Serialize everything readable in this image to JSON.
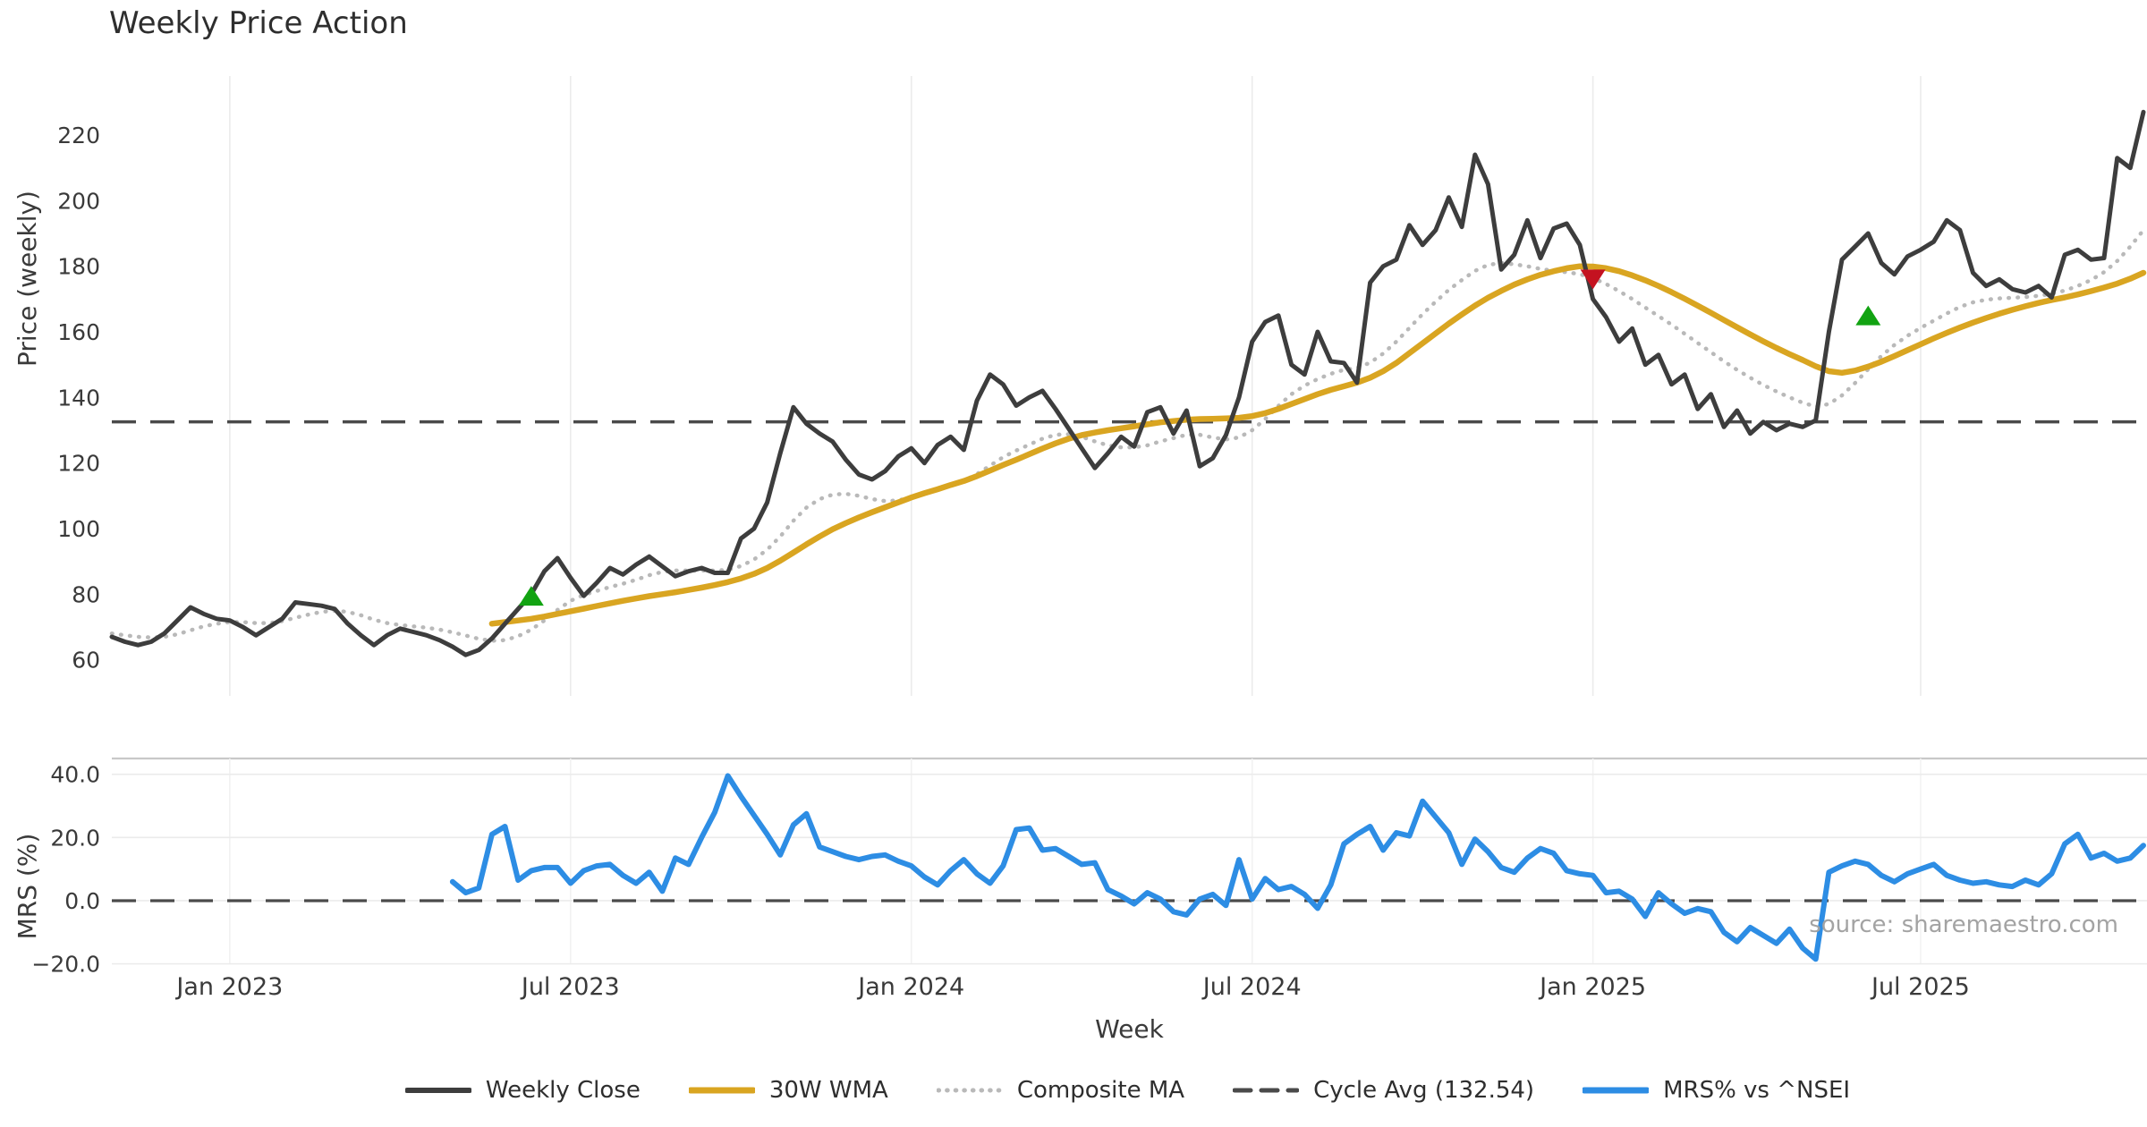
{
  "title": "Weekly Price Action",
  "source_text": "source: sharemaestro.com",
  "colors": {
    "close": "#3d3d3d",
    "wma": "#d9a521",
    "composite": "#b9b9b9",
    "cycle": "#4a4a4a",
    "mrs": "#2d8de4",
    "marker_up": "#12a312",
    "marker_down": "#c41220",
    "grid": "#ebebeb",
    "grid_faint": "#f2f2f2",
    "panel_border": "#c8c8c8",
    "axis_text": "#3a3a3a",
    "source_text_color": "#a3a3a3"
  },
  "legend": {
    "items": [
      {
        "label": "Weekly Close",
        "style": "solid",
        "color": "#3d3d3d",
        "thickness": 6
      },
      {
        "label": "30W WMA",
        "style": "solid",
        "color": "#d9a521",
        "thickness": 7
      },
      {
        "label": "Composite MA",
        "style": "dotted",
        "color": "#b9b9b9",
        "thickness": 5
      },
      {
        "label": "Cycle Avg (132.54)",
        "style": "dashed",
        "color": "#4a4a4a",
        "thickness": 5
      },
      {
        "label": "MRS% vs ^NSEI",
        "style": "solid",
        "color": "#2d8de4",
        "thickness": 7
      }
    ]
  },
  "chart_data": [
    {
      "type": "line",
      "panel": "price",
      "title": "Weekly Price Action",
      "xlabel": "Week",
      "ylabel": "Price (weekly)",
      "n_weeks": 156,
      "x_start_date_approx": "2022-10-31",
      "x_tick_labels": [
        "Jan 2023",
        "Jul 2023",
        "Jan 2024",
        "Jul 2024",
        "Jan 2025",
        "Jul 2025"
      ],
      "x_tick_weeks": [
        9,
        35,
        61,
        87,
        113,
        138
      ],
      "ylim": [
        49,
        238
      ],
      "yticks": [
        60,
        80,
        100,
        120,
        140,
        160,
        180,
        200,
        220
      ],
      "grid": "vertical",
      "reference_line": {
        "name": "Cycle Avg (132.54)",
        "value": 132.54,
        "style": "dashed"
      },
      "series": [
        {
          "name": "Weekly Close",
          "style": "solid",
          "color_key": "close",
          "start_index": 0,
          "values": [
            67,
            65.5,
            64.5,
            65.5,
            68,
            72,
            76,
            74,
            72.5,
            72,
            70,
            67.5,
            70,
            72.5,
            77.5,
            77,
            76.5,
            75.5,
            71,
            67.5,
            64.5,
            67.5,
            69.5,
            68.5,
            67.5,
            66,
            64,
            61.5,
            63,
            66.5,
            71,
            75.5,
            80,
            87,
            91,
            85,
            79.5,
            83.5,
            88,
            86,
            89,
            91.5,
            88.5,
            85.5,
            87,
            88,
            86.5,
            86.5,
            97,
            100,
            108,
            123,
            137,
            132,
            129,
            126.5,
            121,
            116.5,
            115,
            117.5,
            122,
            124.5,
            120,
            125.5,
            128,
            124,
            139,
            147,
            144,
            137.5,
            140,
            142,
            136.5,
            130.5,
            124.5,
            118.5,
            123,
            128,
            125,
            135.5,
            137,
            129,
            136,
            119,
            121.5,
            128.5,
            140,
            157,
            163,
            165,
            150,
            147,
            160,
            151,
            150.5,
            144.5,
            175,
            180,
            182,
            192.5,
            186.5,
            191,
            201,
            192,
            214,
            205,
            179,
            183.5,
            194,
            182.5,
            191.5,
            193,
            186.5,
            170,
            164.5,
            157,
            161,
            150,
            153,
            144,
            147,
            136.5,
            141,
            131,
            136,
            129,
            132.5,
            130,
            132,
            131,
            133,
            160,
            182,
            186,
            190,
            181,
            177.5,
            183,
            185,
            187.5,
            194,
            191,
            178,
            174,
            176,
            173,
            172,
            174,
            170.5,
            183.5,
            185,
            182,
            182.5,
            213,
            210,
            227
          ]
        },
        {
          "name": "30W WMA",
          "style": "solid",
          "color_key": "wma",
          "start_index": 29,
          "values": [
            71,
            71.5,
            72,
            72.5,
            73.2,
            74,
            74.8,
            75.6,
            76.4,
            77.2,
            78,
            78.7,
            79.4,
            80,
            80.6,
            81.3,
            82,
            82.8,
            83.7,
            84.8,
            86.2,
            88,
            90.2,
            92.7,
            95.2,
            97.6,
            99.8,
            101.7,
            103.4,
            105,
            106.5,
            108,
            109.5,
            110.8,
            112,
            113.3,
            114.5,
            116,
            117.7,
            119.4,
            121,
            122.7,
            124.4,
            126,
            127.4,
            128.5,
            129.3,
            130,
            130.6,
            131.2,
            131.8,
            132.4,
            132.8,
            133.2,
            133.4,
            133.5,
            133.6,
            133.8,
            134.3,
            135.2,
            136.5,
            138,
            139.5,
            141,
            142.3,
            143.4,
            144.5,
            146,
            148,
            150.5,
            153.5,
            156.5,
            159.5,
            162.5,
            165.3,
            168,
            170.4,
            172.5,
            174.4,
            176,
            177.4,
            178.5,
            179.4,
            180,
            179.9,
            179.4,
            178.5,
            177.2,
            175.7,
            174,
            172.1,
            170.1,
            168,
            165.8,
            163.6,
            161.4,
            159.2,
            157.1,
            155.1,
            153.2,
            151.4,
            149.5,
            148,
            147.5,
            148.2,
            149.4,
            150.9,
            152.6,
            154.4,
            156.2,
            158,
            159.7,
            161.3,
            162.8,
            164.2,
            165.5,
            166.7,
            167.8,
            168.8,
            169.7,
            170.5,
            171.4,
            172.4,
            173.5,
            174.7,
            176.2,
            178
          ]
        },
        {
          "name": "Composite MA",
          "style": "dotted",
          "color_key": "composite",
          "start_index": 0,
          "values": [
            68,
            67.5,
            67,
            66.8,
            67,
            67.8,
            69,
            70.2,
            71,
            71.5,
            71.5,
            71.2,
            71.2,
            71.8,
            72.8,
            73.8,
            74.6,
            75,
            74.6,
            73.6,
            72.2,
            71.2,
            70.6,
            70.2,
            69.8,
            69.2,
            68.4,
            67.4,
            66.4,
            65.8,
            66,
            67.2,
            69.2,
            72,
            75.2,
            78,
            79.8,
            81,
            82.2,
            83.2,
            84.4,
            85.8,
            86.8,
            87.2,
            87.2,
            87.2,
            87.2,
            87.4,
            88.6,
            90.6,
            93.6,
            97.6,
            102.4,
            106.4,
            109,
            110.4,
            110.6,
            110,
            109,
            108.4,
            108.6,
            109.6,
            110.8,
            112,
            113.4,
            114.6,
            116.6,
            119.2,
            121.8,
            123.8,
            125.6,
            127.4,
            128.6,
            128.8,
            128,
            126.6,
            125.4,
            124.8,
            124.8,
            125.4,
            126.6,
            127.6,
            128.6,
            128.6,
            127.8,
            127.2,
            127.8,
            130,
            133.4,
            137.4,
            141,
            143.6,
            145.6,
            147.2,
            148.4,
            149,
            150.6,
            153.4,
            157,
            161.2,
            165.4,
            169.2,
            172.8,
            175.8,
            178.6,
            180.4,
            181,
            180.6,
            180,
            179.2,
            178.6,
            178.2,
            177.6,
            176.4,
            174.6,
            172.4,
            170,
            167.4,
            164.8,
            162.2,
            159.4,
            156.6,
            153.8,
            151,
            148.4,
            146,
            143.8,
            141.8,
            140,
            138.4,
            137.2,
            138,
            140.6,
            144.4,
            148.6,
            152.6,
            156,
            158.8,
            161.2,
            163.4,
            165.6,
            167.6,
            169,
            169.8,
            170.2,
            170.4,
            170.6,
            171,
            171.6,
            172.6,
            174,
            175.8,
            178.2,
            181.6,
            186,
            191
          ]
        }
      ],
      "markers": [
        {
          "shape": "triangle-up",
          "color_key": "marker_up",
          "week": 32,
          "value": 79.5
        },
        {
          "shape": "triangle-down",
          "color_key": "marker_down",
          "week": 113,
          "value": 176
        },
        {
          "shape": "triangle-up",
          "color_key": "marker_up",
          "week": 134,
          "value": 165
        }
      ]
    },
    {
      "type": "line",
      "panel": "mrs",
      "xlabel": "Week",
      "ylabel": "MRS (%)",
      "x_tick_labels": [
        "Jan 2023",
        "Jul 2023",
        "Jan 2024",
        "Jul 2024",
        "Jan 2025",
        "Jul 2025"
      ],
      "x_tick_weeks": [
        9,
        35,
        61,
        87,
        113,
        138
      ],
      "ylim": [
        -23.5,
        45
      ],
      "yticks": [
        -20,
        0,
        20,
        40
      ],
      "ytick_labels": [
        "−20.0",
        "0.0",
        "20.0",
        "40.0"
      ],
      "grid": "horizontal",
      "reference_line": {
        "name": "zero",
        "value": 0,
        "style": "dashed"
      },
      "series": [
        {
          "name": "MRS% vs ^NSEI",
          "style": "solid",
          "color_key": "mrs",
          "start_index": 26,
          "values": [
            6,
            2.5,
            4,
            21,
            23.5,
            6.5,
            9.5,
            10.5,
            10.5,
            5.5,
            9.5,
            11,
            11.5,
            8,
            5.5,
            9,
            3,
            13.5,
            11.5,
            20,
            28,
            39.5,
            33,
            27,
            21,
            14.5,
            24,
            27.5,
            17,
            15.5,
            14,
            13,
            14,
            14.5,
            12.5,
            11,
            7.5,
            5,
            9.5,
            13,
            8.5,
            5.5,
            11,
            22.5,
            23,
            16,
            16.5,
            14,
            11.5,
            12,
            3.5,
            1.5,
            -1,
            2.5,
            0.5,
            -3.5,
            -4.5,
            0.5,
            2,
            -1.5,
            13,
            0.5,
            7,
            3.5,
            4.5,
            2,
            -2.4,
            5,
            18,
            21,
            23.5,
            16,
            21.5,
            20.5,
            31.5,
            26.5,
            21.5,
            11.5,
            19.5,
            15.5,
            10.5,
            9,
            13.5,
            16.5,
            15,
            9.5,
            8.5,
            8,
            2.5,
            3,
            0.5,
            -5,
            2.5,
            -1,
            -4,
            -2.5,
            -3.5,
            -10,
            -13,
            -8.5,
            -11,
            -13.5,
            -9,
            -15,
            -18.5,
            9,
            11,
            12.5,
            11.5,
            8,
            6,
            8.5,
            10,
            11.5,
            8,
            6.5,
            5.5,
            6,
            5,
            4.5,
            6.5,
            5,
            8.5,
            18,
            21,
            13.5,
            15,
            12.5,
            13.5,
            17.5
          ]
        }
      ]
    }
  ],
  "axis": {
    "price_ylabel": "Price (weekly)",
    "mrs_ylabel": "MRS (%)",
    "xlabel": "Week"
  }
}
